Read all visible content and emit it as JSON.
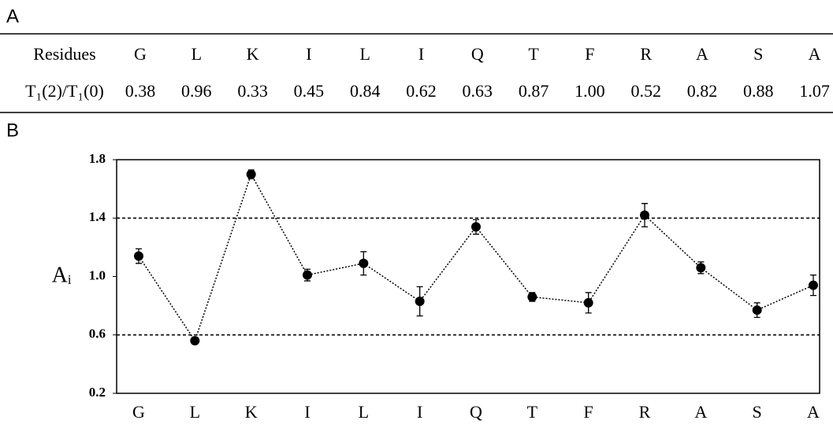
{
  "panels": {
    "a": "A",
    "b": "B"
  },
  "table": {
    "header": [
      "Residues",
      "G",
      "L",
      "K",
      "I",
      "L",
      "I",
      "Q",
      "T",
      "F",
      "R",
      "A",
      "S",
      "A"
    ],
    "rows": [
      [
        "T₁(2)/T₁(0)",
        "0.38",
        "0.96",
        "0.33",
        "0.45",
        "0.84",
        "0.62",
        "0.63",
        "0.87",
        "1.00",
        "0.52",
        "0.82",
        "0.88",
        "1.07"
      ]
    ]
  },
  "chart_data": {
    "type": "line",
    "y_label": "Aᵢ",
    "categories": [
      "G",
      "L",
      "K",
      "I",
      "L",
      "I",
      "Q",
      "T",
      "F",
      "R",
      "A",
      "S",
      "A"
    ],
    "values": [
      1.14,
      0.56,
      1.7,
      1.01,
      1.09,
      0.83,
      1.34,
      0.86,
      0.82,
      1.42,
      1.06,
      0.77,
      0.94
    ],
    "errors": [
      0.05,
      0.02,
      0.03,
      0.04,
      0.08,
      0.1,
      0.05,
      0.03,
      0.07,
      0.08,
      0.04,
      0.05,
      0.07
    ],
    "color": "#000000",
    "ylim": [
      0.2,
      1.8
    ],
    "yticks": [
      0.2,
      0.6,
      {
        "value": 1,
        "label": "1.0"
      },
      1.4,
      1.8
    ],
    "reference_lines": [
      0.6,
      1.4
    ]
  }
}
